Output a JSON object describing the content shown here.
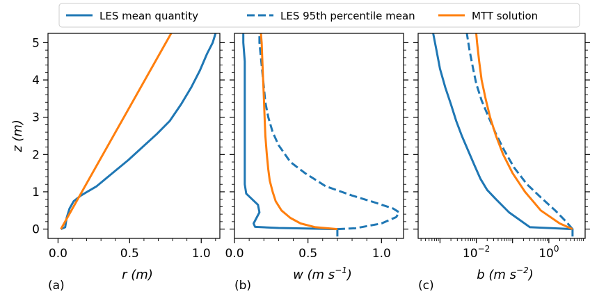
{
  "colors": {
    "les": "#1f77b4",
    "mtt": "#ff7f0e"
  },
  "legend": {
    "items": [
      {
        "label": "LES mean quantity",
        "style": "solid",
        "color": "#1f77b4"
      },
      {
        "label": "LES 95th percentile mean",
        "style": "dashed",
        "color": "#1f77b4"
      },
      {
        "label": "MTT solution",
        "style": "solid",
        "color": "#ff7f0e"
      }
    ],
    "position": "top"
  },
  "chart_data": [
    {
      "type": "line",
      "panel_label": "(a)",
      "xlabel": "r (m)",
      "ylabel": "z (m)",
      "xlim": [
        -0.07,
        1.13
      ],
      "ylim": [
        -0.25,
        5.25
      ],
      "xticks": [
        0.0,
        0.5,
        1.0
      ],
      "xtick_labels": [
        "0.0",
        "0.5",
        "1.0"
      ],
      "yticks": [
        0,
        1,
        2,
        3,
        4,
        5
      ],
      "ytick_labels": [
        "0",
        "1",
        "2",
        "3",
        "4",
        "5"
      ],
      "series": [
        {
          "name": "LES mean quantity",
          "style": "solid",
          "color": "#1f77b4",
          "x": [
            0.02,
            0.05,
            0.06,
            0.08,
            0.11,
            0.16,
            0.27,
            0.38,
            0.49,
            0.59,
            0.69,
            0.78,
            0.86,
            0.93,
            0.99,
            1.04,
            1.08,
            1.1
          ],
          "y": [
            0.0,
            0.05,
            0.3,
            0.55,
            0.75,
            0.9,
            1.15,
            1.5,
            1.85,
            2.2,
            2.55,
            2.9,
            3.35,
            3.8,
            4.25,
            4.7,
            5.0,
            5.25
          ]
        },
        {
          "name": "MTT solution",
          "style": "solid",
          "color": "#ff7f0e",
          "x": [
            0.02,
            0.79
          ],
          "y": [
            0.0,
            5.25
          ]
        }
      ]
    },
    {
      "type": "line",
      "panel_label": "(b)",
      "xlabel": "w (m s^-1)",
      "xlabel_text": "w (m s",
      "xlabel_sup": "−1",
      "xlim": [
        0.0,
        1.15
      ],
      "ylim": [
        -0.25,
        5.25
      ],
      "xticks": [
        0.0,
        0.5,
        1.0
      ],
      "xtick_labels": [
        "0.0",
        "0.5",
        "1.0"
      ],
      "yticks": [
        0,
        1,
        2,
        3,
        4,
        5
      ],
      "series": [
        {
          "name": "LES mean quantity",
          "style": "solid",
          "color": "#1f77b4",
          "x": [
            0.7,
            0.7,
            0.3,
            0.14,
            0.13,
            0.15,
            0.17,
            0.16,
            0.12,
            0.08,
            0.07,
            0.07,
            0.07,
            0.07,
            0.07,
            0.06,
            0.06
          ],
          "y": [
            -0.2,
            0.0,
            0.03,
            0.06,
            0.15,
            0.3,
            0.45,
            0.65,
            0.8,
            0.95,
            1.2,
            2.0,
            3.0,
            4.0,
            4.5,
            5.0,
            5.25
          ]
        },
        {
          "name": "LES 95th percentile mean",
          "style": "dashed",
          "color": "#1f77b4",
          "x": [
            0.7,
            0.82,
            1.0,
            1.1,
            1.12,
            1.08,
            0.95,
            0.8,
            0.62,
            0.48,
            0.38,
            0.3,
            0.26,
            0.23,
            0.21,
            0.2,
            0.19,
            0.18,
            0.17,
            0.17
          ],
          "y": [
            0.0,
            0.02,
            0.15,
            0.32,
            0.45,
            0.55,
            0.72,
            0.9,
            1.15,
            1.5,
            1.8,
            2.25,
            2.6,
            3.0,
            3.4,
            3.8,
            4.2,
            4.6,
            5.0,
            5.25
          ]
        },
        {
          "name": "MTT solution",
          "style": "solid",
          "color": "#ff7f0e",
          "x": [
            0.7,
            0.55,
            0.45,
            0.38,
            0.32,
            0.28,
            0.26,
            0.24,
            0.23,
            0.22,
            0.21,
            0.205,
            0.2,
            0.195,
            0.19,
            0.185,
            0.18
          ],
          "y": [
            0.0,
            0.05,
            0.15,
            0.3,
            0.5,
            0.75,
            1.0,
            1.3,
            1.6,
            2.0,
            2.5,
            3.0,
            3.5,
            4.0,
            4.5,
            5.0,
            5.25
          ]
        }
      ]
    },
    {
      "type": "line",
      "panel_label": "(c)",
      "xlabel": "b (m s^-2)",
      "xlabel_text": "b (m s",
      "xlabel_sup": "−2",
      "xscale": "log",
      "xlim": [
        0.00025,
        10
      ],
      "ylim": [
        -0.25,
        5.25
      ],
      "xticks": [
        0.01,
        1
      ],
      "xtick_labels_base": [
        "10",
        "10"
      ],
      "xtick_labels_exp": [
        "−2",
        "0"
      ],
      "yticks": [
        0,
        1,
        2,
        3,
        4,
        5
      ],
      "series": [
        {
          "name": "LES mean quantity",
          "style": "solid",
          "color": "#1f77b4",
          "x": [
            4.5,
            4.5,
            0.3,
            0.08,
            0.035,
            0.02,
            0.013,
            0.009,
            0.006,
            0.004,
            0.0028,
            0.002,
            0.0014,
            0.001,
            0.0008,
            0.00065
          ],
          "y": [
            -0.2,
            0.0,
            0.05,
            0.45,
            0.8,
            1.05,
            1.35,
            1.7,
            2.1,
            2.5,
            2.9,
            3.35,
            3.8,
            4.3,
            4.8,
            5.25
          ]
        },
        {
          "name": "LES 95th percentile mean",
          "style": "dashed",
          "color": "#1f77b4",
          "x": [
            4.5,
            3.0,
            1.5,
            0.6,
            0.25,
            0.11,
            0.06,
            0.035,
            0.022,
            0.014,
            0.01,
            0.008,
            0.0065,
            0.0055
          ],
          "y": [
            0.0,
            0.2,
            0.5,
            0.85,
            1.2,
            1.65,
            2.1,
            2.55,
            3.0,
            3.45,
            3.9,
            4.35,
            4.8,
            5.25
          ]
        },
        {
          "name": "MTT solution",
          "style": "solid",
          "color": "#ff7f0e",
          "x": [
            4.5,
            2.0,
            0.6,
            0.22,
            0.1,
            0.055,
            0.035,
            0.024,
            0.018,
            0.014,
            0.012,
            0.0105,
            0.01
          ],
          "y": [
            0.0,
            0.15,
            0.5,
            1.0,
            1.5,
            2.0,
            2.5,
            3.0,
            3.5,
            4.0,
            4.5,
            5.0,
            5.25
          ]
        }
      ]
    }
  ]
}
